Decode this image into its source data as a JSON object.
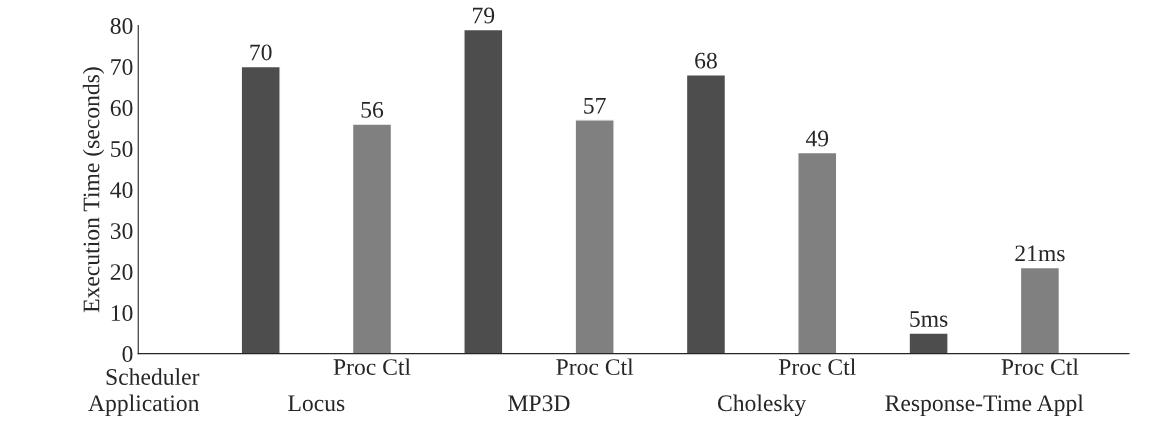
{
  "chart_data": {
    "type": "bar",
    "ylabel": "Execution Time (seconds)",
    "categories": [
      null,
      "Proc Ctl",
      null,
      "Proc Ctl",
      null,
      "Proc Ctl",
      null,
      "Proc Ctl"
    ],
    "values": [
      70,
      56,
      79,
      57,
      68,
      49,
      5,
      21
    ],
    "value_labels": [
      "70",
      "56",
      "79",
      "57",
      "68",
      "49",
      "5ms",
      "21ms"
    ],
    "colors": [
      "#4d4d4d",
      "#808080",
      "#4d4d4d",
      "#808080",
      "#4d4d4d",
      "#808080",
      "#4d4d4d",
      "#808080"
    ],
    "ylim": [
      0,
      80
    ],
    "yticks": [
      0,
      10,
      20,
      30,
      40,
      50,
      60,
      70,
      80
    ],
    "grid": false,
    "annotations": [
      "Scheduler",
      "Application",
      "Locus",
      "MP3D",
      "Cholesky",
      "Response-Time Appl"
    ]
  }
}
